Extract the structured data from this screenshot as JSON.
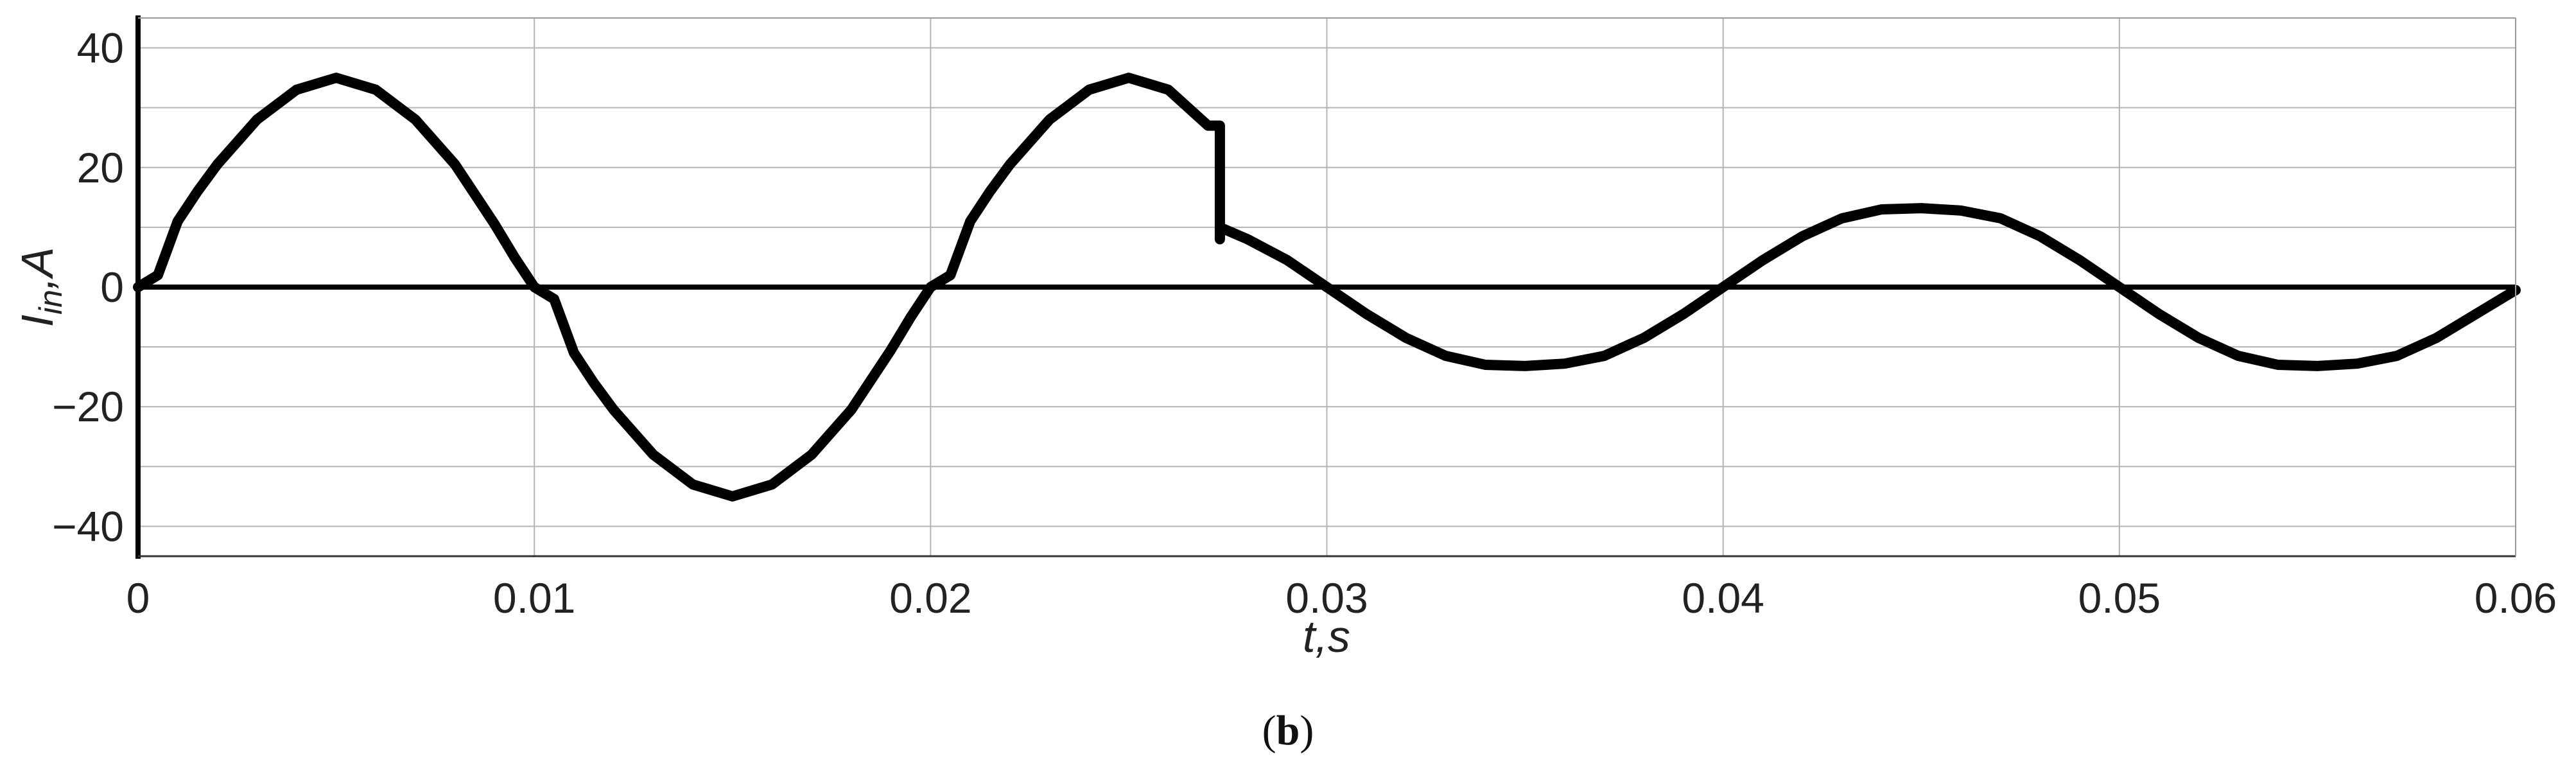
{
  "chart_data": {
    "type": "line",
    "title": "",
    "xlabel": "t,s",
    "ylabel": {
      "main": "I",
      "sub": "in",
      "suffix": ",A"
    },
    "xlim": [
      0,
      0.06
    ],
    "ylim": [
      -45,
      45
    ],
    "xticks": [
      0,
      0.01,
      0.02,
      0.03,
      0.04,
      0.05,
      0.06
    ],
    "xtick_labels": [
      "0",
      "0.01",
      "0.02",
      "0.03",
      "0.04",
      "0.05",
      "0.06"
    ],
    "yticks": [
      -40,
      -20,
      0,
      20,
      40
    ],
    "ytick_labels": [
      "−40",
      "−20",
      "0",
      "20",
      "40"
    ],
    "grid": true,
    "series": [
      {
        "color": "#000000",
        "x": [
          0,
          0.0005,
          0.001,
          0.0015,
          0.002,
          0.003,
          0.004,
          0.005,
          0.006,
          0.007,
          0.008,
          0.009,
          0.0095,
          0.01,
          0.0105,
          0.011,
          0.0115,
          0.012,
          0.013,
          0.014,
          0.015,
          0.016,
          0.017,
          0.018,
          0.019,
          0.0195,
          0.02,
          0.0205,
          0.021,
          0.0215,
          0.022,
          0.023,
          0.024,
          0.025,
          0.026,
          0.027,
          0.0273,
          0.0273,
          0.0273,
          0.028,
          0.029,
          0.03,
          0.031,
          0.032,
          0.033,
          0.034,
          0.035,
          0.036,
          0.037,
          0.038,
          0.039,
          0.04,
          0.041,
          0.042,
          0.043,
          0.044,
          0.045,
          0.046,
          0.047,
          0.048,
          0.049,
          0.05,
          0.051,
          0.052,
          0.053,
          0.054,
          0.055,
          0.056,
          0.057,
          0.058,
          0.059,
          0.06
        ],
        "y": [
          0,
          2,
          11,
          16,
          20.5,
          28,
          33,
          35,
          33,
          28,
          20.5,
          10.5,
          5,
          0,
          -2,
          -11,
          -16,
          -20.5,
          -28,
          -33,
          -35,
          -33,
          -28,
          -20.5,
          -10.5,
          -5,
          0,
          2,
          11,
          16,
          20.5,
          28,
          33,
          35,
          33,
          27,
          27,
          8,
          10,
          8,
          4.5,
          0,
          -4.5,
          -8.5,
          -11.5,
          -13,
          -13.2,
          -12.8,
          -11.5,
          -8.5,
          -4.5,
          0,
          4.5,
          8.5,
          11.5,
          13,
          13.2,
          12.8,
          11.5,
          8.5,
          4.5,
          0,
          -4.5,
          -8.5,
          -11.5,
          -13,
          -13.2,
          -12.8,
          -11.5,
          -8.5,
          -4.5,
          -0.5
        ]
      }
    ]
  },
  "caption": {
    "open": "(",
    "bold": "b",
    "close": ")"
  }
}
